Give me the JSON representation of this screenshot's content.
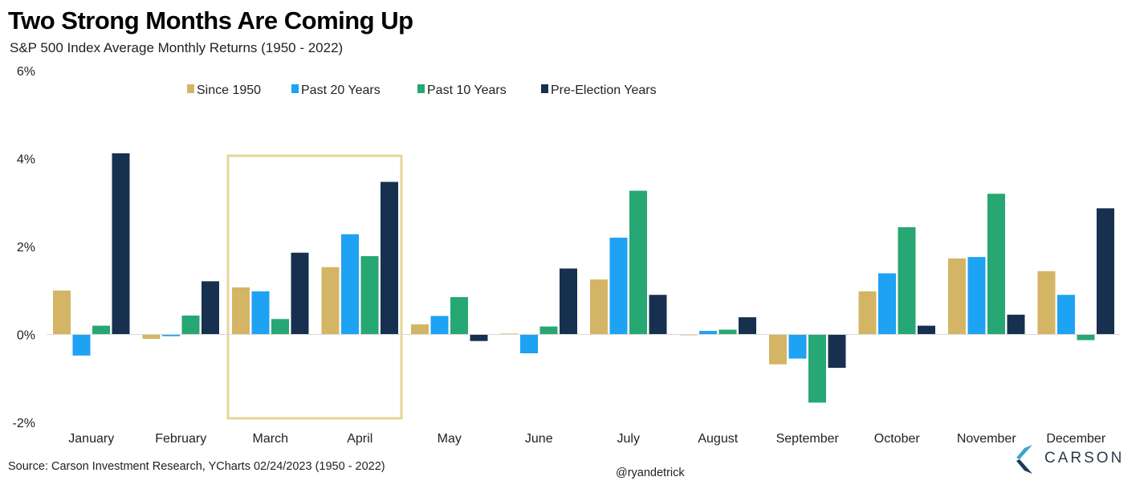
{
  "title": "Two Strong Months Are Coming Up",
  "subtitle": "S&P 500 Index Average Monthly Returns (1950 - 2022)",
  "source": "Source: Carson Investment Research, YCharts 02/24/2023 (1950 - 2022)",
  "handle": "@ryandetrick",
  "logo_text": "CARSON",
  "colors": {
    "Since 1950": "#d4b565",
    "Past 20 Years": "#1ea2f3",
    "Past 10 Years": "#27a774",
    "Pre-Election Years": "#18304f",
    "highlight_box": "#e8d49a",
    "logo_light": "#3aa6c9",
    "logo_dark": "#1c3a5a"
  },
  "chart_data": {
    "type": "bar",
    "title": "Two Strong Months Are Coming Up",
    "subtitle": "S&P 500 Index Average Monthly Returns (1950 - 2022)",
    "categories": [
      "January",
      "February",
      "March",
      "April",
      "May",
      "June",
      "July",
      "August",
      "September",
      "October",
      "November",
      "December"
    ],
    "series": [
      {
        "name": "Since 1950",
        "values": [
          1.0,
          -0.1,
          1.07,
          1.53,
          0.23,
          0.02,
          1.25,
          -0.01,
          -0.68,
          0.98,
          1.73,
          1.44
        ]
      },
      {
        "name": "Past 20 Years",
        "values": [
          -0.48,
          -0.04,
          0.98,
          2.28,
          0.42,
          -0.43,
          2.2,
          0.08,
          -0.55,
          1.39,
          1.76,
          0.9
        ]
      },
      {
        "name": "Past 10 Years",
        "values": [
          0.2,
          0.43,
          0.35,
          1.78,
          0.85,
          0.18,
          3.27,
          0.11,
          -1.55,
          2.44,
          3.2,
          -0.13
        ]
      },
      {
        "name": "Pre-Election Years",
        "values": [
          4.12,
          1.21,
          1.86,
          3.47,
          -0.15,
          1.5,
          0.9,
          0.39,
          -0.76,
          0.2,
          0.45,
          2.87
        ]
      }
    ],
    "yticks": [
      "6%",
      "4%",
      "2%",
      "0%",
      "-2%"
    ],
    "ylim": [
      -2,
      6
    ],
    "y_unit": "%",
    "legend_position": "top",
    "grid": false,
    "highlighted_categories": [
      "March",
      "April"
    ]
  }
}
